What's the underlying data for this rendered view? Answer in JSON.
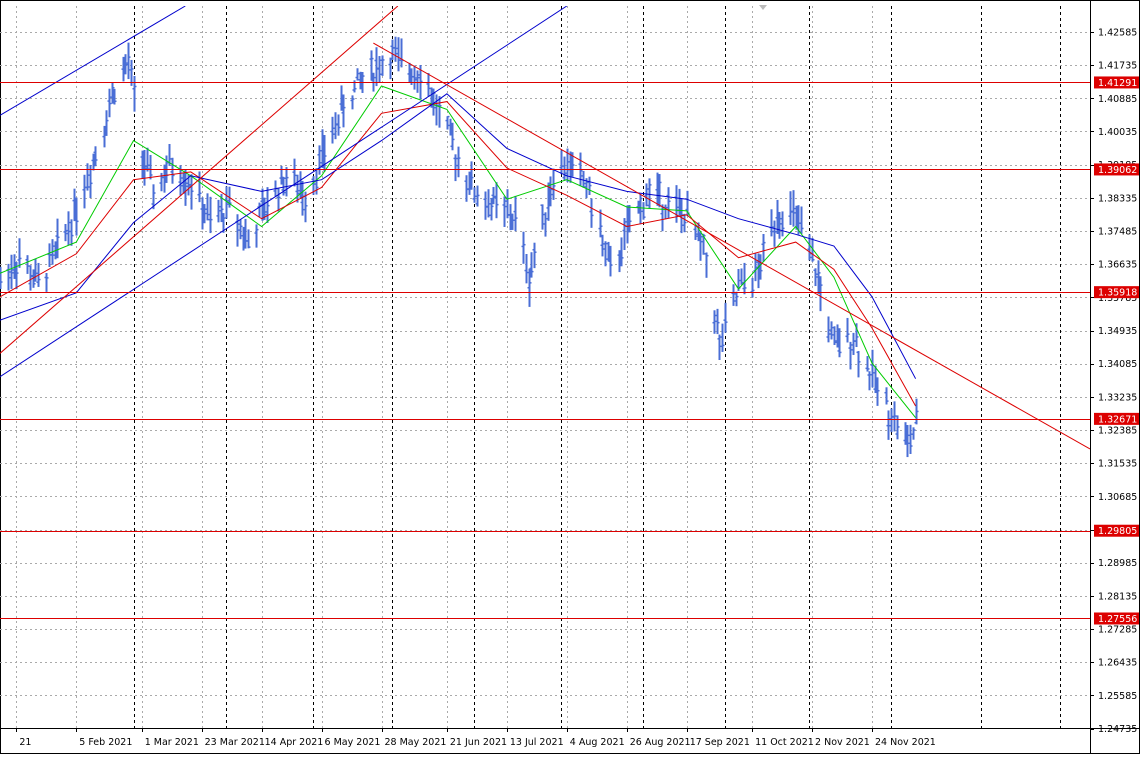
{
  "chart_data": {
    "type": "line",
    "chart_style": "bar",
    "xlim": [
      "2021-01-08",
      "2022-02-12"
    ],
    "ylim": [
      1.2475,
      1.4325
    ],
    "y_ticks": [
      "1.42585",
      "1.41735",
      "1.40885",
      "1.40035",
      "1.39185",
      "1.38335",
      "1.37485",
      "1.36635",
      "1.35785",
      "1.34935",
      "1.34085",
      "1.33235",
      "1.32385",
      "1.31535",
      "1.30685",
      "1.29835",
      "1.28985",
      "1.28135",
      "1.27285",
      "1.26435",
      "1.25585",
      "1.24735"
    ],
    "x_ticks": [
      {
        "date": "2021-01-14",
        "label": "21"
      },
      {
        "date": "2021-02-05",
        "label": "5 Feb 2021"
      },
      {
        "date": "2021-03-01",
        "label": "1 Mar 2021"
      },
      {
        "date": "2021-03-23",
        "label": "23 Mar 2021"
      },
      {
        "date": "2021-04-14",
        "label": "14 Apr 2021"
      },
      {
        "date": "2021-05-06",
        "label": "6 May 2021"
      },
      {
        "date": "2021-05-28",
        "label": "28 May 2021"
      },
      {
        "date": "2021-06-21",
        "label": "21 Jun 2021"
      },
      {
        "date": "2021-07-13",
        "label": "13 Jul 2021"
      },
      {
        "date": "2021-08-04",
        "label": "4 Aug 2021"
      },
      {
        "date": "2021-08-26",
        "label": "26 Aug 2021"
      },
      {
        "date": "2021-09-17",
        "label": "17 Sep 2021"
      },
      {
        "date": "2021-10-11",
        "label": "11 Oct 2021"
      },
      {
        "date": "2021-11-02",
        "label": "2 Nov 2021"
      },
      {
        "date": "2021-11-24",
        "label": "24 Nov 2021"
      }
    ],
    "vertical_dividers": [
      "2021-02-26",
      "2021-04-01",
      "2021-05-03",
      "2021-06-01",
      "2021-07-01",
      "2021-08-02",
      "2021-09-01",
      "2021-10-01",
      "2021-11-01",
      "2021-12-01",
      "2022-01-03",
      "2022-02-01"
    ],
    "grid": true,
    "price_series": {
      "name": "",
      "points": [
        [
          "2021-01-08",
          1.362
        ],
        [
          "2021-01-15",
          1.368
        ],
        [
          "2021-01-22",
          1.361
        ],
        [
          "2021-01-29",
          1.37
        ],
        [
          "2021-02-05",
          1.381
        ],
        [
          "2021-02-12",
          1.395
        ],
        [
          "2021-02-19",
          1.412
        ],
        [
          "2021-02-24",
          1.418
        ],
        [
          "2021-03-01",
          1.394
        ],
        [
          "2021-03-05",
          1.385
        ],
        [
          "2021-03-12",
          1.392
        ],
        [
          "2021-03-19",
          1.387
        ],
        [
          "2021-03-26",
          1.377
        ],
        [
          "2021-04-02",
          1.381
        ],
        [
          "2021-04-09",
          1.372
        ],
        [
          "2021-04-16",
          1.382
        ],
        [
          "2021-04-23",
          1.389
        ],
        [
          "2021-04-30",
          1.384
        ],
        [
          "2021-05-07",
          1.395
        ],
        [
          "2021-05-14",
          1.407
        ],
        [
          "2021-05-21",
          1.414
        ],
        [
          "2021-05-28",
          1.418
        ],
        [
          "2021-06-01",
          1.42
        ],
        [
          "2021-06-04",
          1.417
        ],
        [
          "2021-06-11",
          1.416
        ],
        [
          "2021-06-18",
          1.405
        ],
        [
          "2021-06-25",
          1.393
        ],
        [
          "2021-07-02",
          1.384
        ],
        [
          "2021-07-09",
          1.381
        ],
        [
          "2021-07-16",
          1.378
        ],
        [
          "2021-07-21",
          1.363
        ],
        [
          "2021-07-30",
          1.389
        ],
        [
          "2021-08-04",
          1.392
        ],
        [
          "2021-08-11",
          1.387
        ],
        [
          "2021-08-20",
          1.364
        ],
        [
          "2021-08-27",
          1.376
        ],
        [
          "2021-09-03",
          1.385
        ],
        [
          "2021-09-10",
          1.382
        ],
        [
          "2021-09-17",
          1.378
        ],
        [
          "2021-09-24",
          1.368
        ],
        [
          "2021-09-29",
          1.345
        ],
        [
          "2021-10-06",
          1.36
        ],
        [
          "2021-10-13",
          1.364
        ],
        [
          "2021-10-20",
          1.38
        ],
        [
          "2021-10-27",
          1.378
        ],
        [
          "2021-11-03",
          1.365
        ],
        [
          "2021-11-10",
          1.345
        ],
        [
          "2021-11-17",
          1.348
        ],
        [
          "2021-11-24",
          1.337
        ],
        [
          "2021-12-01",
          1.328
        ],
        [
          "2021-12-07",
          1.32
        ],
        [
          "2021-12-10",
          1.325
        ]
      ]
    },
    "moving_averages": [
      {
        "color": "#00cc00",
        "points": [
          [
            "2021-01-08",
            1.364
          ],
          [
            "2021-02-05",
            1.372
          ],
          [
            "2021-02-26",
            1.398
          ],
          [
            "2021-03-19",
            1.389
          ],
          [
            "2021-04-14",
            1.376
          ],
          [
            "2021-05-06",
            1.389
          ],
          [
            "2021-05-28",
            1.412
          ],
          [
            "2021-06-21",
            1.406
          ],
          [
            "2021-07-13",
            1.383
          ],
          [
            "2021-08-04",
            1.388
          ],
          [
            "2021-08-26",
            1.381
          ],
          [
            "2021-09-17",
            1.38
          ],
          [
            "2021-10-06",
            1.36
          ],
          [
            "2021-10-27",
            1.376
          ],
          [
            "2021-11-10",
            1.363
          ],
          [
            "2021-11-24",
            1.341
          ],
          [
            "2021-12-10",
            1.327
          ]
        ]
      },
      {
        "color": "#dd0000",
        "points": [
          [
            "2021-01-08",
            1.358
          ],
          [
            "2021-02-05",
            1.369
          ],
          [
            "2021-02-26",
            1.388
          ],
          [
            "2021-03-19",
            1.39
          ],
          [
            "2021-04-14",
            1.378
          ],
          [
            "2021-05-06",
            1.386
          ],
          [
            "2021-05-28",
            1.405
          ],
          [
            "2021-06-21",
            1.408
          ],
          [
            "2021-07-13",
            1.391
          ],
          [
            "2021-08-04",
            1.384
          ],
          [
            "2021-08-26",
            1.376
          ],
          [
            "2021-09-17",
            1.379
          ],
          [
            "2021-10-06",
            1.368
          ],
          [
            "2021-10-27",
            1.372
          ],
          [
            "2021-11-10",
            1.365
          ],
          [
            "2021-11-24",
            1.35
          ],
          [
            "2021-12-10",
            1.33
          ]
        ]
      },
      {
        "color": "#0000cc",
        "points": [
          [
            "2021-01-08",
            1.352
          ],
          [
            "2021-02-05",
            1.359
          ],
          [
            "2021-02-26",
            1.377
          ],
          [
            "2021-03-19",
            1.389
          ],
          [
            "2021-04-14",
            1.385
          ],
          [
            "2021-05-06",
            1.388
          ],
          [
            "2021-05-28",
            1.398
          ],
          [
            "2021-06-21",
            1.41
          ],
          [
            "2021-07-13",
            1.396
          ],
          [
            "2021-08-04",
            1.389
          ],
          [
            "2021-08-26",
            1.385
          ],
          [
            "2021-09-17",
            1.383
          ],
          [
            "2021-10-06",
            1.378
          ],
          [
            "2021-10-27",
            1.374
          ],
          [
            "2021-11-10",
            1.371
          ],
          [
            "2021-11-24",
            1.358
          ],
          [
            "2021-12-10",
            1.337
          ]
        ]
      }
    ],
    "horizontal_levels": [
      {
        "value": 1.41291,
        "label": "1.41291",
        "color": "#dd0000"
      },
      {
        "value": 1.39062,
        "label": "1.39062",
        "color": "#dd0000"
      },
      {
        "value": 1.35918,
        "label": "1.35918",
        "color": "#dd0000"
      },
      {
        "value": 1.32671,
        "label": "1.32671",
        "color": "#dd0000"
      },
      {
        "value": 1.29805,
        "label": "1.29805",
        "color": "#dd0000"
      },
      {
        "value": 1.27556,
        "label": "1.27556",
        "color": "#dd0000"
      }
    ],
    "trendlines": [
      {
        "color": "#0000cc",
        "from": [
          "2021-01-08",
          1.4045
        ],
        "to": [
          "2021-03-17",
          1.4325
        ]
      },
      {
        "color": "#0000cc",
        "from": [
          "2021-01-08",
          1.3375
        ],
        "to": [
          "2021-08-04",
          1.4325
        ]
      },
      {
        "color": "#dd0000",
        "from": [
          "2021-01-08",
          1.3435
        ],
        "to": [
          "2021-06-03",
          1.4325
        ]
      },
      {
        "color": "#dd0000",
        "from": [
          "2021-05-25",
          1.423
        ],
        "to": [
          "2022-02-12",
          1.319
        ]
      }
    ],
    "colors": {
      "price": "#4a6ed6",
      "grid": "#aaaaaa",
      "divider": "#000000",
      "level": "#dd0000"
    }
  }
}
